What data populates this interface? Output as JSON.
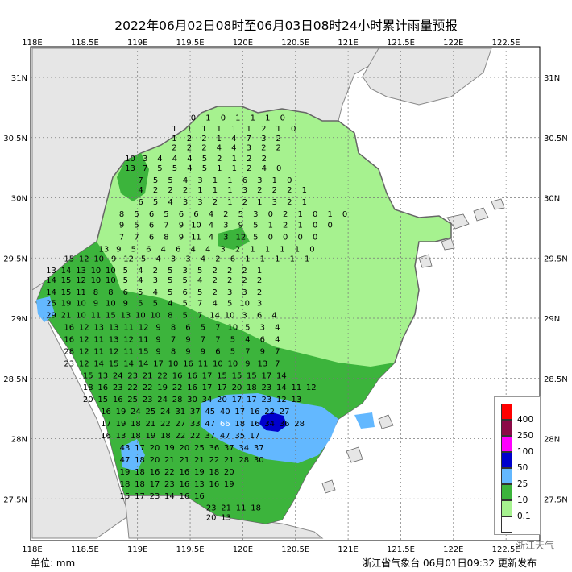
{
  "title": "2022年06月02日08时至06月03日08时24小时累计雨量预报",
  "unit_label": "单位: mm",
  "publisher": "浙江省气象台 06月01日09:32 更新发布",
  "watermark": "浙江天气",
  "axes": {
    "lon_ticks": [
      "118E",
      "118.5E",
      "119E",
      "119.5E",
      "120E",
      "120.5E",
      "121E",
      "121.5E",
      "122E",
      "122.5E"
    ],
    "lat_ticks": [
      "31N",
      "30.5N",
      "30N",
      "29.5N",
      "29N",
      "28.5N",
      "28N",
      "27.5N"
    ]
  },
  "legend": [
    {
      "label": "400",
      "color": "#ff0000"
    },
    {
      "label": "250",
      "color": "#8b0a46"
    },
    {
      "label": "100",
      "color": "#ff00ff"
    },
    {
      "label": "50",
      "color": "#0000cd"
    },
    {
      "label": "25",
      "color": "#63b8ff"
    },
    {
      "label": "10",
      "color": "#3cb43c"
    },
    {
      "label": "0.1",
      "color": "#a6f28f"
    },
    {
      "label": "",
      "color": "#ffffff"
    }
  ],
  "colors": {
    "light_green": "#a6f28f",
    "green": "#3cb43c",
    "light_blue": "#63b8ff",
    "blue": "#0000cd",
    "gray": "#e6e6e6",
    "dark_gray": "#666666"
  },
  "rain_rows": [
    {
      "lat": 30.67,
      "start": 119.53,
      "values": [
        0,
        1,
        0,
        1,
        1,
        1,
        0
      ]
    },
    {
      "lat": 30.58,
      "start": 119.35,
      "values": [
        1,
        1,
        1,
        1,
        1,
        1,
        2,
        1,
        0
      ]
    },
    {
      "lat": 30.5,
      "start": 119.35,
      "values": [
        1,
        2,
        2,
        1,
        4,
        7,
        3,
        2
      ]
    },
    {
      "lat": 30.42,
      "start": 119.35,
      "values": [
        2,
        2,
        2,
        4,
        4,
        3,
        2,
        2
      ]
    },
    {
      "lat": 30.33,
      "start": 118.93,
      "values": [
        10,
        3,
        4,
        4,
        4,
        5,
        2,
        1,
        2,
        2
      ]
    },
    {
      "lat": 30.25,
      "start": 118.93,
      "values": [
        13,
        7,
        5,
        5,
        4,
        5,
        1,
        1,
        2,
        4,
        0
      ]
    },
    {
      "lat": 30.15,
      "start": 119.03,
      "values": [
        7,
        5,
        5,
        4,
        3,
        1,
        1,
        6,
        3,
        1,
        0
      ]
    },
    {
      "lat": 30.07,
      "start": 119.03,
      "values": [
        4,
        2,
        2,
        2,
        1,
        1,
        1,
        3,
        2,
        2,
        2,
        1
      ]
    },
    {
      "lat": 29.97,
      "start": 119.03,
      "values": [
        6,
        5,
        4,
        3,
        3,
        2,
        1,
        2,
        1,
        3,
        2,
        1
      ]
    },
    {
      "lat": 29.87,
      "start": 118.85,
      "values": [
        8,
        5,
        6,
        5,
        6,
        6,
        4,
        2,
        5,
        3,
        0,
        2,
        1,
        0,
        1,
        0
      ]
    },
    {
      "lat": 29.78,
      "start": 118.85,
      "values": [
        9,
        5,
        6,
        7,
        9,
        10,
        4,
        3,
        9,
        5,
        1,
        2,
        1,
        0,
        0
      ]
    },
    {
      "lat": 29.68,
      "start": 118.85,
      "values": [
        7,
        7,
        6,
        8,
        9,
        11,
        4,
        3,
        12,
        5,
        0,
        0,
        0,
        0
      ]
    },
    {
      "lat": 29.58,
      "start": 118.68,
      "values": [
        13,
        9,
        5,
        6,
        4,
        6,
        4,
        4,
        3,
        2,
        1,
        1,
        1,
        1,
        0
      ]
    },
    {
      "lat": 29.5,
      "start": 118.35,
      "values": [
        15,
        12,
        10,
        9,
        12,
        5,
        4,
        3,
        3,
        4,
        2,
        6,
        1,
        1,
        1,
        1,
        1
      ]
    },
    {
      "lat": 29.4,
      "start": 118.18,
      "values": [
        13,
        14,
        13,
        10,
        10,
        5,
        4,
        2,
        5,
        3,
        5,
        2,
        2,
        2,
        1
      ]
    },
    {
      "lat": 29.32,
      "start": 118.18,
      "values": [
        14,
        15,
        12,
        10,
        10,
        5,
        4,
        3,
        5,
        5,
        4,
        2,
        2,
        2,
        2
      ]
    },
    {
      "lat": 29.22,
      "start": 118.18,
      "values": [
        14,
        15,
        11,
        8,
        8,
        6,
        5,
        4,
        5,
        6,
        5,
        2,
        3,
        3,
        2
      ]
    },
    {
      "lat": 29.13,
      "start": 118.18,
      "values": [
        25,
        19,
        10,
        9,
        10,
        9,
        5,
        5,
        4,
        5,
        7,
        4,
        5,
        10,
        3
      ]
    },
    {
      "lat": 29.03,
      "start": 118.18,
      "values": [
        29,
        21,
        10,
        11,
        15,
        13,
        10,
        10,
        8,
        5,
        7,
        14,
        10,
        3,
        6,
        4
      ]
    },
    {
      "lat": 28.93,
      "start": 118.35,
      "values": [
        16,
        12,
        13,
        13,
        11,
        12,
        9,
        8,
        6,
        5,
        7,
        10,
        5,
        3,
        4
      ]
    },
    {
      "lat": 28.83,
      "start": 118.35,
      "values": [
        16,
        12,
        11,
        13,
        12,
        11,
        9,
        7,
        9,
        7,
        7,
        5,
        4,
        6,
        4
      ]
    },
    {
      "lat": 28.73,
      "start": 118.35,
      "values": [
        28,
        12,
        11,
        12,
        11,
        15,
        9,
        8,
        9,
        9,
        6,
        5,
        7,
        9,
        7
      ]
    },
    {
      "lat": 28.63,
      "start": 118.35,
      "values": [
        23,
        12,
        14,
        15,
        14,
        14,
        17,
        10,
        16,
        11,
        10,
        10,
        9,
        13,
        7
      ]
    },
    {
      "lat": 28.53,
      "start": 118.53,
      "values": [
        15,
        13,
        24,
        23,
        21,
        22,
        16,
        16,
        17,
        15,
        15,
        15,
        17,
        14
      ]
    },
    {
      "lat": 28.43,
      "start": 118.53,
      "values": [
        18,
        16,
        23,
        22,
        22,
        19,
        22,
        16,
        17,
        17,
        20,
        18,
        23,
        14,
        11,
        12
      ]
    },
    {
      "lat": 28.33,
      "start": 118.53,
      "values": [
        20,
        15,
        16,
        25,
        23,
        24,
        28,
        30,
        34,
        20,
        17,
        17,
        23,
        12,
        13
      ]
    },
    {
      "lat": 28.23,
      "start": 118.7,
      "values": [
        16,
        19,
        24,
        25,
        24,
        31,
        37,
        45,
        40,
        17,
        16,
        22,
        27
      ]
    },
    {
      "lat": 28.13,
      "start": 118.7,
      "values": [
        17,
        19,
        18,
        21,
        22,
        27,
        33,
        47,
        66,
        18,
        16,
        34,
        36,
        28
      ]
    },
    {
      "lat": 28.03,
      "start": 118.7,
      "values": [
        16,
        13,
        18,
        19,
        18,
        22,
        22,
        37,
        47,
        35,
        17
      ]
    },
    {
      "lat": 27.93,
      "start": 118.88,
      "values": [
        43,
        17,
        20,
        19,
        20,
        25,
        36,
        37,
        34,
        37
      ]
    },
    {
      "lat": 27.83,
      "start": 118.88,
      "values": [
        47,
        18,
        20,
        21,
        21,
        21,
        22,
        21,
        28,
        30
      ]
    },
    {
      "lat": 27.73,
      "start": 118.88,
      "values": [
        19,
        18,
        16,
        22,
        16,
        19,
        18,
        20
      ]
    },
    {
      "lat": 27.63,
      "start": 118.88,
      "values": [
        18,
        18,
        17,
        23,
        16,
        13,
        16,
        19
      ]
    },
    {
      "lat": 27.53,
      "start": 118.88,
      "values": [
        15,
        17,
        23,
        14,
        16,
        16
      ]
    },
    {
      "lat": 27.43,
      "start": 119.7,
      "values": [
        23,
        21,
        11,
        18
      ]
    },
    {
      "lat": 27.35,
      "start": 119.7,
      "values": [
        20,
        13
      ]
    }
  ]
}
